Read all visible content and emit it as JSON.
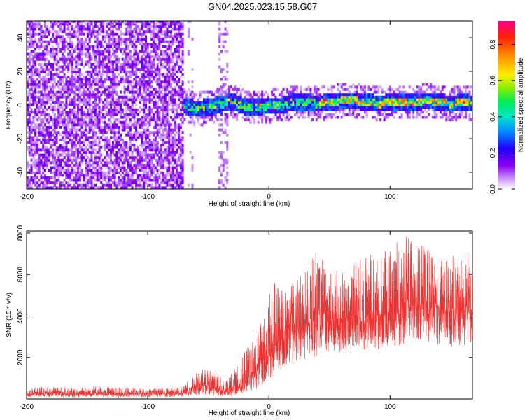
{
  "title": "GN04.2025.023.15.58.G07",
  "chart_data": [
    {
      "type": "heatmap",
      "xlabel": "Height of straight line (km)",
      "ylabel": "Frequency (Hz)",
      "xlim": [
        -200,
        168
      ],
      "ylim": [
        -50,
        50
      ],
      "x_ticks": [
        -200,
        -100,
        0,
        100
      ],
      "y_ticks": [
        -40,
        -20,
        0,
        20,
        40
      ],
      "noise_region_x": [
        -200,
        -72
      ],
      "signal_start_x": -72,
      "signal_track": {
        "x": [
          -72,
          -60,
          -50,
          -40,
          -30,
          -20,
          -10,
          0,
          10,
          20,
          30,
          40,
          50,
          60,
          70,
          80,
          90,
          100,
          110,
          120,
          130,
          140,
          150,
          160,
          168
        ],
        "y": [
          -1,
          -3,
          -2,
          0,
          1,
          -2,
          -2,
          -1,
          -1,
          1,
          1,
          0,
          1,
          2,
          2,
          1,
          0,
          1,
          1,
          1,
          2,
          1,
          0,
          1,
          0
        ]
      },
      "colorbar": {
        "label": "Normalized spectral amplitude",
        "range": [
          0,
          0.93
        ],
        "ticks": [
          0.0,
          0.2,
          0.4,
          0.6,
          0.8
        ],
        "tick_labels": [
          "0.0",
          "0.2",
          "0.4",
          "0.6",
          "0.8"
        ]
      }
    },
    {
      "type": "line",
      "xlabel": "Height of straight line (km)",
      "ylabel": "SNR (10 * v/v)",
      "xlim": [
        -200,
        168
      ],
      "ylim": [
        0,
        8100
      ],
      "x_ticks": [
        -200,
        -100,
        0,
        100
      ],
      "y_ticks": [
        2000,
        4000,
        6000,
        8000
      ],
      "color": "#ee3333",
      "series": [
        {
          "x": [
            -200,
            -180,
            -160,
            -140,
            -120,
            -100,
            -85,
            -70,
            -65,
            -55,
            -45,
            -35,
            -25,
            -15,
            -5,
            0,
            5,
            10,
            20,
            30,
            40,
            50,
            60,
            70,
            80,
            90,
            100,
            110,
            120,
            130,
            140,
            150,
            160,
            168
          ],
          "mean": [
            230,
            260,
            240,
            250,
            230,
            240,
            250,
            270,
            420,
            700,
            500,
            350,
            500,
            1100,
            1700,
            2200,
            2600,
            3000,
            3300,
            3600,
            3800,
            3800,
            3900,
            4000,
            4000,
            4100,
            4200,
            4400,
            4500,
            4600,
            4500,
            4200,
            4200,
            4400
          ],
          "max": [
            550,
            600,
            550,
            600,
            550,
            500,
            520,
            650,
            1000,
            1500,
            1300,
            900,
            1700,
            3000,
            3900,
            5000,
            5600,
            5200,
            5600,
            6100,
            7200,
            6000,
            6300,
            6500,
            6900,
            7000,
            7300,
            8000,
            7500,
            7300,
            6900,
            7000,
            6700,
            7300
          ],
          "min": [
            80,
            90,
            80,
            90,
            80,
            80,
            90,
            100,
            150,
            200,
            150,
            120,
            200,
            350,
            600,
            900,
            1200,
            1400,
            1700,
            1900,
            2000,
            2100,
            2200,
            2300,
            2300,
            2400,
            2500,
            2600,
            2800,
            2800,
            2600,
            2500,
            2500,
            2700
          ]
        }
      ]
    }
  ]
}
